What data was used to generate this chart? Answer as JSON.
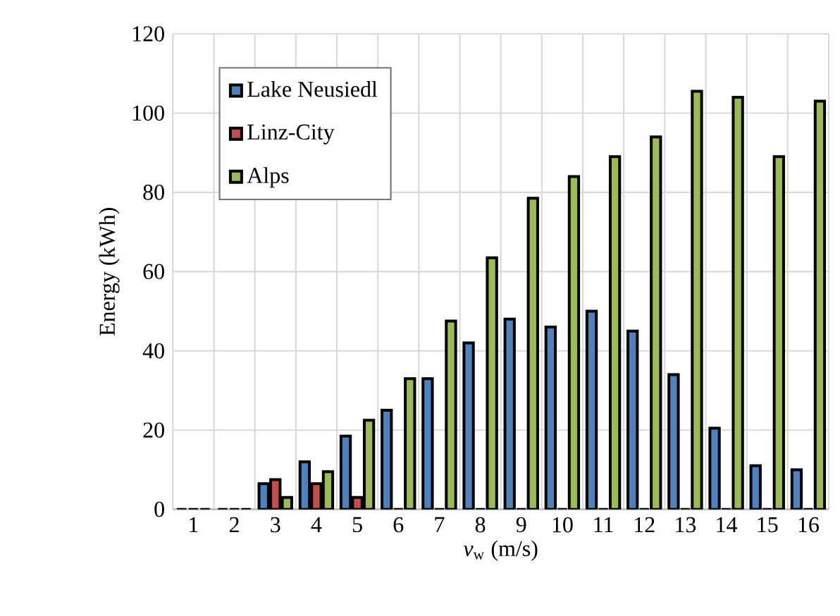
{
  "chart_data": {
    "type": "bar",
    "xlabel": "*v*$_{w}$ (m/s)",
    "ylabel": "Energy (kWh)",
    "categories": [
      "1",
      "2",
      "3",
      "4",
      "5",
      "6",
      "7",
      "8",
      "9",
      "10",
      "11",
      "12",
      "13",
      "14",
      "15",
      "16"
    ],
    "series": [
      {
        "name": "Lake Neusiedl",
        "color": "#4f81bd",
        "values": [
          0,
          0,
          6.5,
          12,
          18.5,
          25,
          33,
          42,
          48,
          46,
          50,
          45,
          34,
          20.5,
          11,
          10
        ]
      },
      {
        "name": "Linz-City",
        "color": "#c0504d",
        "values": [
          0,
          0,
          7.5,
          6.5,
          3,
          0,
          0,
          0,
          0,
          0,
          0,
          0,
          0,
          0,
          0,
          0
        ]
      },
      {
        "name": "Alps",
        "color": "#9bbb59",
        "values": [
          0,
          0,
          3,
          9.5,
          22.5,
          33,
          47.5,
          63.5,
          78.5,
          84,
          89,
          94,
          105.5,
          104,
          89,
          103
        ]
      }
    ],
    "ylim": [
      0,
      120
    ],
    "yticks": [
      0,
      20,
      40,
      60,
      80,
      100,
      120
    ],
    "grid": true,
    "legend": "top left"
  }
}
